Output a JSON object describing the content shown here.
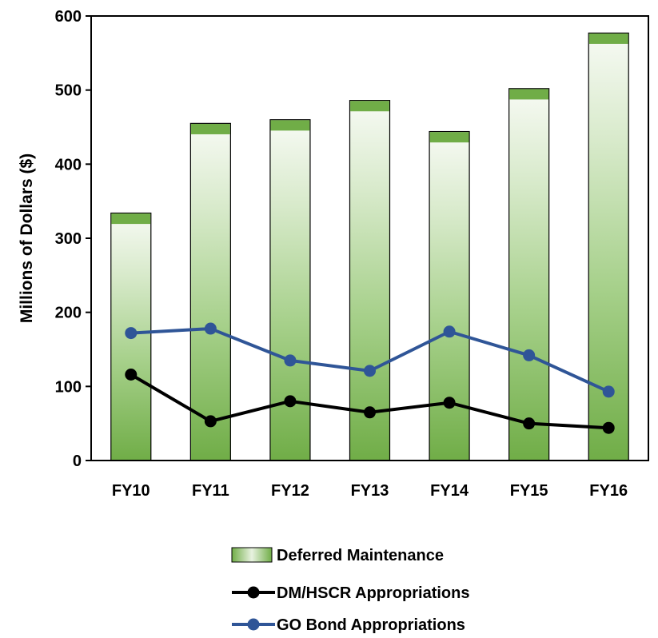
{
  "chart_data": {
    "type": "bar",
    "title": "",
    "xlabel": "",
    "ylabel": "Millions of Dollars ($)",
    "ylim": [
      0,
      600
    ],
    "yticks": [
      0,
      100,
      200,
      300,
      400,
      500,
      600
    ],
    "grid": false,
    "legend_position": "bottom",
    "categories": [
      "FY10",
      "FY11",
      "FY12",
      "FY13",
      "FY14",
      "FY15",
      "FY16"
    ],
    "series": [
      {
        "name": "Deferred Maintenance",
        "kind": "bar",
        "color": "#70ad47",
        "values": [
          334,
          455,
          460,
          486,
          444,
          502,
          577
        ]
      },
      {
        "name": "DM/HSCR Appropriations",
        "kind": "line",
        "color": "#000000",
        "values": [
          116,
          53,
          80,
          65,
          78,
          50,
          44
        ]
      },
      {
        "name": "GO Bond Appropriations",
        "kind": "line",
        "color": "#2f5597",
        "values": [
          172,
          178,
          135,
          121,
          174,
          142,
          93
        ]
      }
    ]
  }
}
